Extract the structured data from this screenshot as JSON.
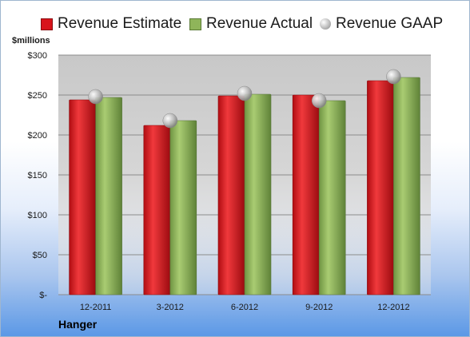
{
  "company": "Hanger",
  "chart_data": {
    "type": "bar",
    "ylabel": "$millions",
    "ylim": [
      0,
      300
    ],
    "yticks": [
      0,
      50,
      100,
      150,
      200,
      250,
      300
    ],
    "ytick_labels": [
      "$-",
      "$50",
      "$100",
      "$150",
      "$200",
      "$250",
      "$300"
    ],
    "categories": [
      "12-2011",
      "3-2012",
      "6-2012",
      "9-2012",
      "12-2012"
    ],
    "series": [
      {
        "name": "Revenue Estimate",
        "kind": "bar",
        "color": "#d8141b",
        "values": [
          244,
          212,
          249,
          250,
          268
        ]
      },
      {
        "name": "Revenue Actual",
        "kind": "bar",
        "color": "#8fb55a",
        "values": [
          247,
          218,
          251,
          243,
          272
        ]
      },
      {
        "name": "Revenue GAAP",
        "kind": "marker",
        "color": "#c9c9c9",
        "values": [
          248,
          218,
          252,
          243,
          273
        ]
      }
    ],
    "grid": true,
    "legend": "top"
  }
}
